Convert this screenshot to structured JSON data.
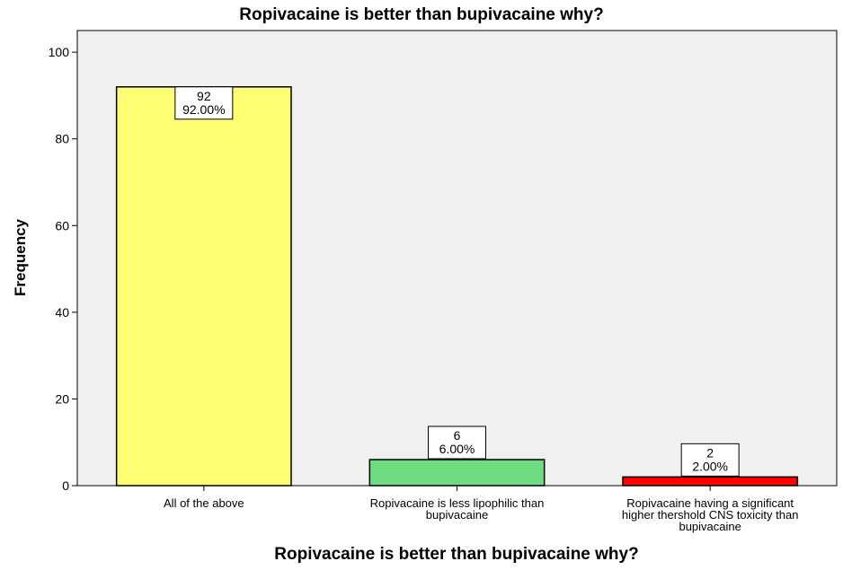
{
  "chart_data": {
    "type": "bar",
    "title": "Ropivacaine is better than bupivacaine why?",
    "xlabel": "Ropivacaine is better than bupivacaine why?",
    "ylabel": "Frequency",
    "ylim": [
      0,
      105
    ],
    "yticks": [
      0,
      20,
      40,
      60,
      80,
      100
    ],
    "grid": false,
    "legend": "none",
    "categories": [
      [
        "All of the above"
      ],
      [
        "Ropivacaine is less lipophilic than",
        "bupivacaine"
      ],
      [
        "Ropivacaine having a significant",
        "higher thershold CNS toxicity than",
        "bupivacaine"
      ]
    ],
    "values": [
      92,
      6,
      2
    ],
    "data_labels": [
      [
        "92",
        "92.00%"
      ],
      [
        "6",
        "6.00%"
      ],
      [
        "2",
        "2.00%"
      ]
    ],
    "colors": [
      "#ffff73",
      "#6fdc82",
      "#ff0000"
    ],
    "plot_background": "#f0f0f0"
  }
}
